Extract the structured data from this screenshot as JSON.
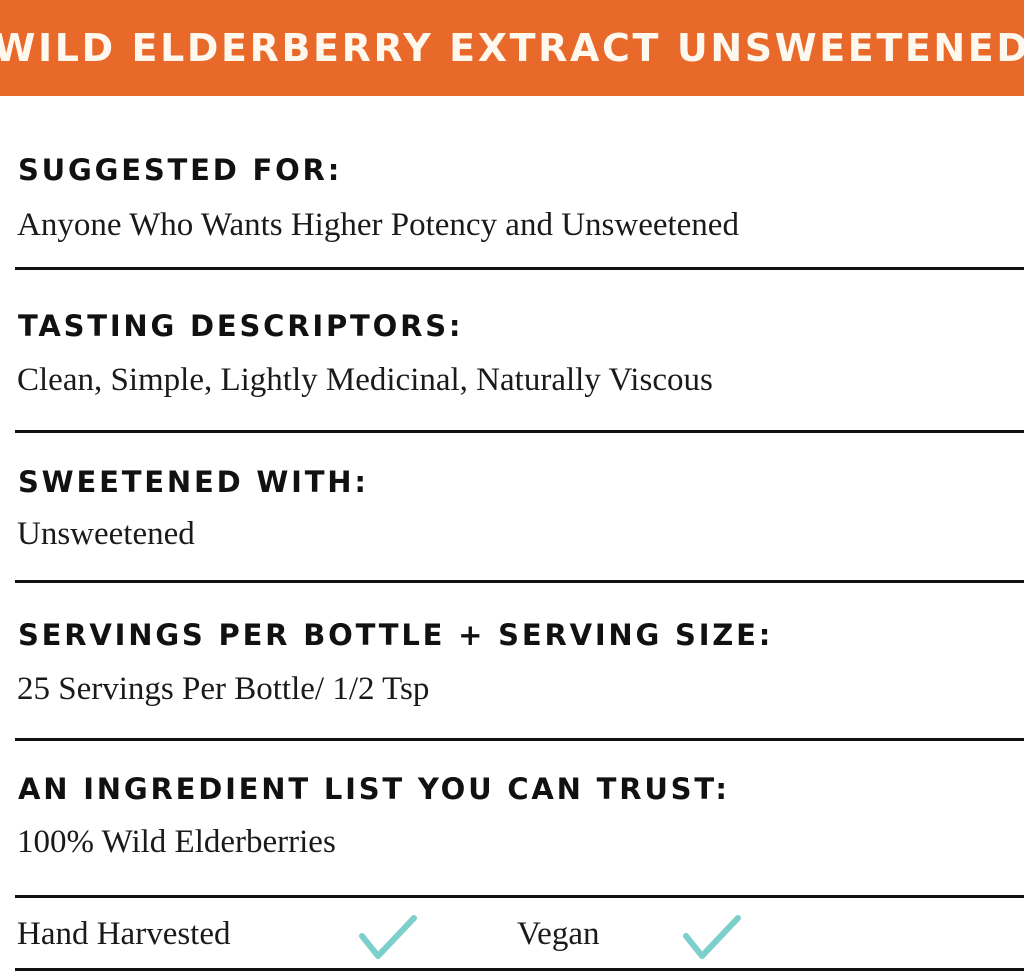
{
  "title": "WILD ELDERBERRY EXTRACT UNSWEETENED",
  "colors": {
    "header_bg": "#E8692A",
    "header_text": "#FFF8EE",
    "check": "#7CCFCB"
  },
  "sections": [
    {
      "heading": "SUGGESTED FOR:",
      "value": "Anyone Who Wants Higher Potency and Unsweetened"
    },
    {
      "heading": "TASTING DESCRIPTORS:",
      "value": "Clean, Simple, Lightly Medicinal, Naturally Viscous"
    },
    {
      "heading": "SWEETENED WITH:",
      "value": "Unsweetened"
    },
    {
      "heading": "SERVINGS PER BOTTLE + SERVING SIZE:",
      "value": "25 Servings Per Bottle/ 1/2 Tsp"
    },
    {
      "heading": "AN INGREDIENT LIST YOU CAN TRUST:",
      "value": "100% Wild Elderberries"
    }
  ],
  "attributes": [
    {
      "label": "Hand Harvested",
      "icon": "checkmark-icon",
      "checked": true
    },
    {
      "label": "Vegan",
      "icon": "checkmark-icon",
      "checked": true
    }
  ]
}
